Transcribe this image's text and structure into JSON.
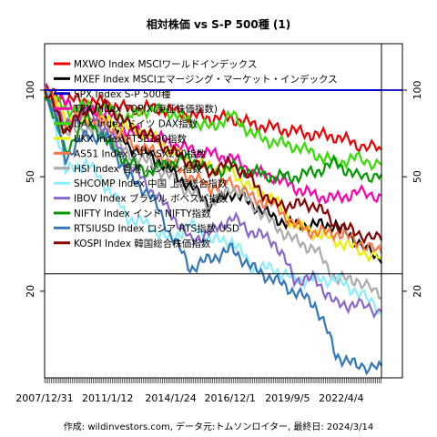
{
  "chart_data": {
    "type": "line",
    "title": "相対株価 vs S-P 500種 (1)",
    "ylabel": "",
    "xlabel": "",
    "log_scale_y": true,
    "ylim": [
      10,
      145
    ],
    "xlim": [
      "2007-12-31",
      "2025-03-14"
    ],
    "y_ticks": [
      20,
      50,
      100
    ],
    "x_ticks": [
      "2007/12/31",
      "2011/1/12",
      "2014/1/24",
      "2016/12/1",
      "2019/9/5",
      "2022/4/4"
    ],
    "legend_position": "top-left",
    "grid": false,
    "reference_lines": [
      100,
      23
    ],
    "x": [
      2008.0,
      2009.0,
      2010.0,
      2011.0,
      2012.0,
      2013.0,
      2014.0,
      2015.0,
      2016.0,
      2017.0,
      2018.0,
      2019.0,
      2020.0,
      2021.0,
      2022.0,
      2023.0,
      2024.2
    ],
    "series": [
      {
        "name": "MXWO Index MSCIワールドインデックス",
        "color": "#ee0000",
        "values": [
          100,
          93,
          92,
          90,
          86,
          87,
          85,
          82,
          80,
          80,
          76,
          74,
          72,
          70,
          69,
          65,
          62
        ]
      },
      {
        "name": "MXEF Index MSCIエマージング・マーケット・インデックス",
        "color": "#000000",
        "values": [
          100,
          72,
          85,
          80,
          64,
          60,
          53,
          46,
          40,
          44,
          40,
          36,
          34,
          34,
          34,
          30,
          25
        ]
      },
      {
        "name": "SPX Index S-P 500種",
        "color": "#0000cc",
        "values": [
          100,
          100,
          100,
          100,
          100,
          100,
          100,
          100,
          100,
          100,
          100,
          100,
          100,
          100,
          100,
          100,
          100
        ]
      },
      {
        "name": "TPX Index TOPIX(東証株価指数)",
        "color": "#ff00aa",
        "values": [
          100,
          90,
          85,
          84,
          72,
          70,
          66,
          62,
          60,
          58,
          52,
          50,
          46,
          43,
          42,
          44,
          43
        ]
      },
      {
        "name": "DAX Index ドイツ DAX指数",
        "color": "#33dd00",
        "values": [
          100,
          85,
          88,
          86,
          80,
          86,
          84,
          78,
          74,
          82,
          70,
          66,
          64,
          60,
          56,
          58,
          55
        ]
      },
      {
        "name": "UKX Index FTSE100指数",
        "color": "#eeee00",
        "values": [
          100,
          80,
          78,
          78,
          74,
          70,
          62,
          56,
          54,
          52,
          45,
          42,
          34,
          32,
          30,
          28,
          26
        ]
      },
      {
        "name": "AS51 Index S-P/ASX200指数",
        "color": "#ff7744",
        "values": [
          100,
          78,
          80,
          76,
          66,
          62,
          56,
          50,
          46,
          48,
          42,
          40,
          34,
          32,
          32,
          30,
          27
        ]
      },
      {
        "name": "HSI Index 香港 ハンセン指数",
        "color": "#aaaaaa",
        "values": [
          100,
          70,
          74,
          70,
          60,
          56,
          50,
          44,
          40,
          46,
          40,
          34,
          30,
          28,
          22,
          22,
          19
        ]
      },
      {
        "name": "SHCOMP Index 中国 上海総合指数",
        "color": "#88eeff",
        "values": [
          100,
          52,
          56,
          46,
          36,
          34,
          30,
          34,
          30,
          30,
          24,
          24,
          22,
          22,
          22,
          20,
          17
        ]
      },
      {
        "name": "IBOV Index ブラジル ボベスパ指数",
        "color": "#8866cc",
        "values": [
          100,
          74,
          86,
          72,
          56,
          46,
          38,
          30,
          32,
          36,
          32,
          30,
          22,
          22,
          18,
          18,
          17
        ]
      },
      {
        "name": "NIFTY Index インド NIFTY指数",
        "color": "#009900",
        "values": [
          100,
          60,
          80,
          66,
          56,
          52,
          56,
          58,
          52,
          54,
          52,
          50,
          50,
          52,
          56,
          50,
          51
        ]
      },
      {
        "name": "RTSIUSD Index ロシア RTS指数 USD",
        "color": "#3377bb",
        "values": [
          100,
          58,
          70,
          68,
          50,
          44,
          32,
          24,
          26,
          28,
          24,
          22,
          20,
          18,
          12,
          11,
          11
        ]
      },
      {
        "name": "KOSPI Index 韓国総合株価指数",
        "color": "#880000",
        "values": [
          100,
          72,
          86,
          88,
          76,
          70,
          62,
          56,
          52,
          56,
          48,
          40,
          40,
          40,
          34,
          32,
          30
        ]
      }
    ]
  },
  "footer": {
    "caption": "作成: wildinvestors.com, データ元:トムソンロイター, 最終日: 2024/3/14"
  }
}
